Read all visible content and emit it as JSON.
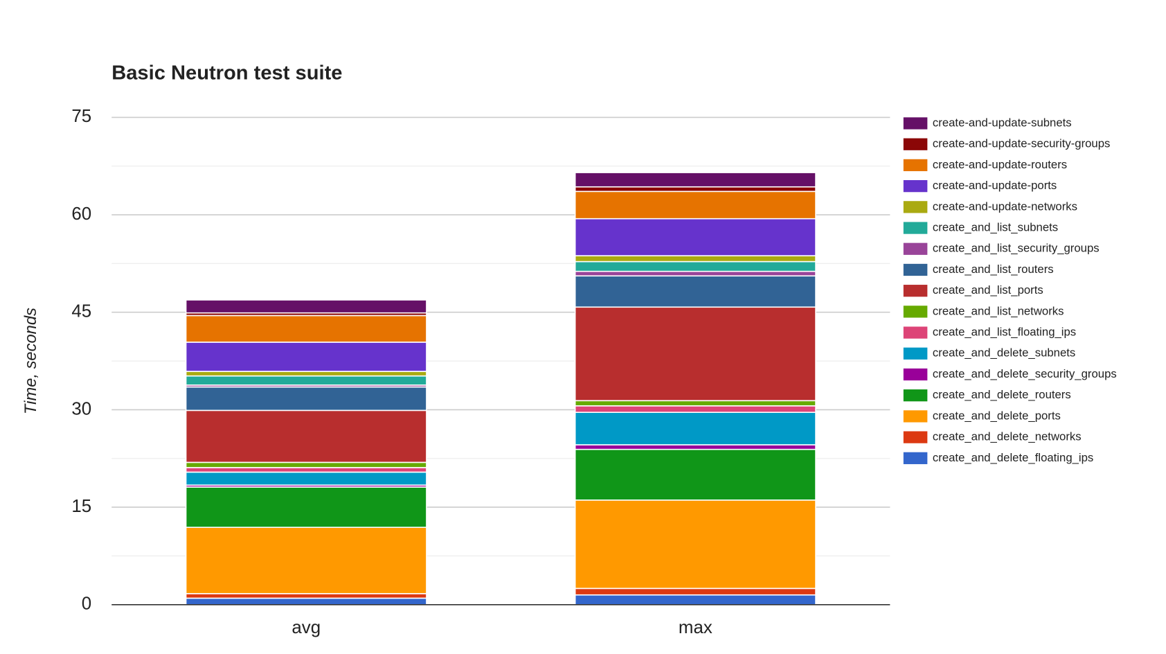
{
  "chart_data": {
    "type": "stacked_bar",
    "title": "Basic Neutron test suite",
    "y_label": "Time, seconds",
    "categories": [
      "avg",
      "max"
    ],
    "ylim": [
      0,
      75
    ],
    "yticks": [
      0,
      15,
      30,
      45,
      60,
      75
    ],
    "grid": true,
    "legend": "right",
    "series": [
      {
        "name": "create_and_delete_floating_ips",
        "color": "#3366cc",
        "values": [
          1.0,
          1.5
        ]
      },
      {
        "name": "create_and_delete_networks",
        "color": "#dc3912",
        "values": [
          0.7,
          1.0
        ]
      },
      {
        "name": "create_and_delete_ports",
        "color": "#ff9900",
        "values": [
          10.2,
          13.6
        ]
      },
      {
        "name": "create_and_delete_routers",
        "color": "#109618",
        "values": [
          6.2,
          7.8
        ]
      },
      {
        "name": "create_and_delete_security_groups",
        "color": "#990099",
        "values": [
          0.3,
          0.7
        ]
      },
      {
        "name": "create_and_delete_subnets",
        "color": "#0099c6",
        "values": [
          2.0,
          5.0
        ]
      },
      {
        "name": "create_and_list_floating_ips",
        "color": "#dd4477",
        "values": [
          0.7,
          1.0
        ]
      },
      {
        "name": "create_and_list_networks",
        "color": "#66aa00",
        "values": [
          0.8,
          0.8
        ]
      },
      {
        "name": "create_and_list_ports",
        "color": "#b82e2e",
        "values": [
          8.0,
          14.4
        ]
      },
      {
        "name": "create_and_list_routers",
        "color": "#316395",
        "values": [
          3.6,
          4.8
        ]
      },
      {
        "name": "create_and_list_security_groups",
        "color": "#994499",
        "values": [
          0.3,
          0.7
        ]
      },
      {
        "name": "create_and_list_subnets",
        "color": "#22aa99",
        "values": [
          1.4,
          1.5
        ]
      },
      {
        "name": "create-and-update-networks",
        "color": "#aaaa11",
        "values": [
          0.7,
          0.9
        ]
      },
      {
        "name": "create-and-update-ports",
        "color": "#6633cc",
        "values": [
          4.5,
          5.7
        ]
      },
      {
        "name": "create-and-update-routers",
        "color": "#e67300",
        "values": [
          4.1,
          4.2
        ]
      },
      {
        "name": "create-and-update-security-groups",
        "color": "#8b0707",
        "values": [
          0.4,
          0.7
        ]
      },
      {
        "name": "create-and-update-subnets",
        "color": "#651067",
        "values": [
          2.0,
          2.2
        ]
      }
    ]
  }
}
